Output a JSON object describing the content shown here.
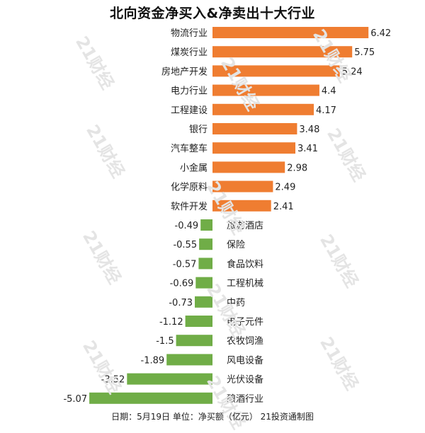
{
  "title": "北向资金净买入&净卖出十大行业",
  "footer": "日期：5月19日 单位：净买额（亿元） 21投资通制图",
  "watermark": "21财经",
  "colors": {
    "positive": "#ef7d31",
    "negative": "#70ad47",
    "text": "#222222"
  },
  "chart_data": {
    "type": "bar",
    "orientation": "horizontal",
    "title": "北向资金净买入&净卖出十大行业",
    "categories": [
      "物流行业",
      "煤炭行业",
      "房地产开发",
      "电力行业",
      "工程建设",
      "银行",
      "汽车整车",
      "小金属",
      "化学原料",
      "软件开发",
      "旅游酒店",
      "保险",
      "食品饮料",
      "工程机械",
      "中药",
      "电子元件",
      "农牧饲渔",
      "风电设备",
      "光伏设备",
      "酿酒行业"
    ],
    "values": [
      6.42,
      5.75,
      5.24,
      4.4,
      4.17,
      3.48,
      3.41,
      2.98,
      2.49,
      2.41,
      -0.49,
      -0.55,
      -0.57,
      -0.69,
      -0.73,
      -1.12,
      -1.5,
      -1.89,
      -3.52,
      -5.07
    ],
    "value_labels": [
      "6.42",
      "5.75",
      "5.24",
      "4.4",
      "4.17",
      "3.48",
      "3.41",
      "2.98",
      "2.49",
      "2.41",
      "-0.49",
      "-0.55",
      "-0.57",
      "-0.69",
      "-0.73",
      "-1.12",
      "-1.5",
      "-1.89",
      "-3.52",
      "-5.07"
    ],
    "grid": false,
    "legend": "none"
  }
}
